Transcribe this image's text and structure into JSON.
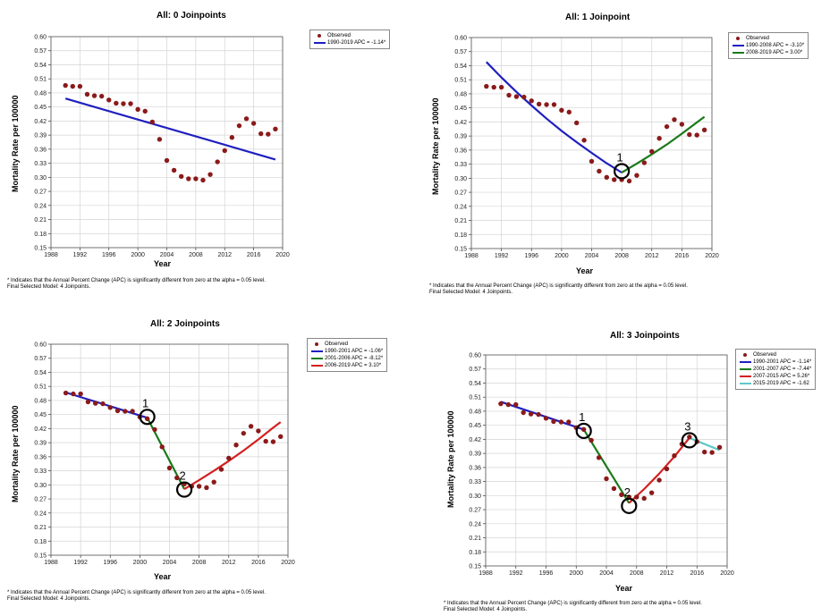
{
  "chart_data": [
    {
      "type": "line",
      "title": "All: 0 Joinpoints",
      "xlabel": "Year",
      "ylabel": "Mortality Rate per 100000",
      "xlim": [
        1988,
        2020
      ],
      "ylim": [
        0.15,
        0.6
      ],
      "x_ticks": [
        "1988",
        "1992",
        "1996",
        "2000",
        "2004",
        "2008",
        "2012",
        "2016",
        "2020"
      ],
      "y_ticks": [
        "0.15",
        "0.18",
        "0.21",
        "0.24",
        "0.27",
        "0.30",
        "0.33",
        "0.36",
        "0.39",
        "0.42",
        "0.45",
        "0.48",
        "0.51",
        "0.54",
        "0.57",
        "0.60"
      ],
      "grid": true,
      "legend_position": "top-right",
      "observed": {
        "name": "Observed",
        "x": [
          1990,
          1991,
          1992,
          1993,
          1994,
          1995,
          1996,
          1997,
          1998,
          1999,
          2000,
          2001,
          2002,
          2003,
          2004,
          2005,
          2006,
          2007,
          2008,
          2009,
          2010,
          2011,
          2012,
          2013,
          2014,
          2015,
          2016,
          2017,
          2018,
          2019
        ],
        "y": [
          0.496,
          0.494,
          0.494,
          0.477,
          0.474,
          0.473,
          0.465,
          0.458,
          0.457,
          0.457,
          0.445,
          0.441,
          0.418,
          0.381,
          0.336,
          0.315,
          0.302,
          0.297,
          0.297,
          0.294,
          0.306,
          0.333,
          0.357,
          0.385,
          0.41,
          0.425,
          0.415,
          0.393,
          0.392,
          0.403
        ]
      },
      "series": [
        {
          "name": "1990-2019 APC = -1.14*",
          "color": "#1f1fbf",
          "x": [
            1990,
            2019
          ],
          "y": [
            0.468,
            0.338
          ]
        }
      ],
      "joinpoints": [],
      "footnote": [
        "* Indicates that the Annual Percent Change (APC) is significantly different from zero at the alpha = 0.05 level.",
        "Final Selected Model: 4 Joinpoints."
      ]
    },
    {
      "type": "line",
      "title": "All: 1 Joinpoint",
      "xlabel": "Year",
      "ylabel": "Mortality Rate per 100000",
      "xlim": [
        1988,
        2020
      ],
      "ylim": [
        0.15,
        0.6
      ],
      "x_ticks": [
        "1988",
        "1992",
        "1996",
        "2000",
        "2004",
        "2008",
        "2012",
        "2016",
        "2020"
      ],
      "y_ticks": [
        "0.15",
        "0.18",
        "0.21",
        "0.24",
        "0.27",
        "0.30",
        "0.33",
        "0.36",
        "0.39",
        "0.42",
        "0.45",
        "0.48",
        "0.51",
        "0.54",
        "0.57",
        "0.60"
      ],
      "grid": true,
      "legend_position": "top-right",
      "observed": {
        "name": "Observed",
        "x": [
          1990,
          1991,
          1992,
          1993,
          1994,
          1995,
          1996,
          1997,
          1998,
          1999,
          2000,
          2001,
          2002,
          2003,
          2004,
          2005,
          2006,
          2007,
          2008,
          2009,
          2010,
          2011,
          2012,
          2013,
          2014,
          2015,
          2016,
          2017,
          2018,
          2019
        ],
        "y": [
          0.496,
          0.494,
          0.494,
          0.477,
          0.474,
          0.473,
          0.465,
          0.458,
          0.457,
          0.457,
          0.445,
          0.441,
          0.418,
          0.381,
          0.336,
          0.315,
          0.302,
          0.297,
          0.297,
          0.294,
          0.306,
          0.333,
          0.357,
          0.385,
          0.41,
          0.425,
          0.415,
          0.393,
          0.392,
          0.403
        ]
      },
      "series": [
        {
          "name": "1990-2008 APC = -3.10*",
          "color": "#1f1fbf",
          "x": [
            1990,
            1992,
            1994,
            1996,
            1998,
            2000,
            2002,
            2004,
            2006,
            2008
          ],
          "y": [
            0.548,
            0.515,
            0.484,
            0.455,
            0.427,
            0.401,
            0.377,
            0.354,
            0.332,
            0.312
          ]
        },
        {
          "name": "2008-2019 APC = 3.00*",
          "color": "#1a7a1a",
          "x": [
            2008,
            2010,
            2012,
            2014,
            2016,
            2018,
            2019
          ],
          "y": [
            0.312,
            0.331,
            0.351,
            0.372,
            0.395,
            0.419,
            0.431
          ]
        }
      ],
      "joinpoints": [
        {
          "label": "1",
          "x": 2008,
          "y": 0.315
        }
      ],
      "footnote": [
        "* Indicates that the Annual Percent Change (APC) is significantly different from zero at the alpha = 0.05 level.",
        "Final Selected Model: 4 Joinpoints."
      ]
    },
    {
      "type": "line",
      "title": "All: 2 Joinpoints",
      "xlabel": "Year",
      "ylabel": "Mortality Rate per 100000",
      "xlim": [
        1988,
        2020
      ],
      "ylim": [
        0.15,
        0.6
      ],
      "x_ticks": [
        "1988",
        "1992",
        "1996",
        "2000",
        "2004",
        "2008",
        "2012",
        "2016",
        "2020"
      ],
      "y_ticks": [
        "0.15",
        "0.18",
        "0.21",
        "0.24",
        "0.27",
        "0.30",
        "0.33",
        "0.36",
        "0.39",
        "0.42",
        "0.45",
        "0.48",
        "0.51",
        "0.54",
        "0.57",
        "0.60"
      ],
      "grid": true,
      "legend_position": "top-right",
      "observed": {
        "name": "Observed",
        "x": [
          1990,
          1991,
          1992,
          1993,
          1994,
          1995,
          1996,
          1997,
          1998,
          1999,
          2000,
          2001,
          2002,
          2003,
          2004,
          2005,
          2006,
          2007,
          2008,
          2009,
          2010,
          2011,
          2012,
          2013,
          2014,
          2015,
          2016,
          2017,
          2018,
          2019
        ],
        "y": [
          0.496,
          0.494,
          0.494,
          0.477,
          0.474,
          0.473,
          0.465,
          0.458,
          0.457,
          0.457,
          0.445,
          0.441,
          0.418,
          0.381,
          0.336,
          0.315,
          0.302,
          0.297,
          0.297,
          0.294,
          0.306,
          0.333,
          0.357,
          0.385,
          0.41,
          0.425,
          0.415,
          0.393,
          0.392,
          0.403
        ]
      },
      "series": [
        {
          "name": "1990-2001 APC = -1.06*",
          "color": "#1f1fbf",
          "x": [
            1990,
            2001
          ],
          "y": [
            0.497,
            0.443
          ]
        },
        {
          "name": "2001-2006 APC = -8.12*",
          "color": "#1a7a1a",
          "x": [
            2001,
            2006
          ],
          "y": [
            0.443,
            0.291
          ]
        },
        {
          "name": "2006-2019 APC = 3.10*",
          "color": "#d42020",
          "x": [
            2006,
            2008,
            2010,
            2012,
            2014,
            2016,
            2018,
            2019
          ],
          "y": [
            0.291,
            0.31,
            0.33,
            0.351,
            0.373,
            0.397,
            0.422,
            0.434
          ]
        }
      ],
      "joinpoints": [
        {
          "label": "1",
          "x": 2001,
          "y": 0.445
        },
        {
          "label": "2",
          "x": 2006,
          "y": 0.29
        }
      ],
      "footnote": [
        "* Indicates that the Annual Percent Change (APC) is significantly different from zero at the alpha = 0.05 level.",
        "Final Selected Model: 4 Joinpoints."
      ]
    },
    {
      "type": "line",
      "title": "All: 3 Joinpoints",
      "xlabel": "Year",
      "ylabel": "Mortality Rate per 100000",
      "xlim": [
        1988,
        2020
      ],
      "ylim": [
        0.15,
        0.6
      ],
      "x_ticks": [
        "1988",
        "1992",
        "1996",
        "2000",
        "2004",
        "2008",
        "2012",
        "2016",
        "2020"
      ],
      "y_ticks": [
        "0.15",
        "0.18",
        "0.21",
        "0.24",
        "0.27",
        "0.30",
        "0.33",
        "0.36",
        "0.39",
        "0.42",
        "0.45",
        "0.48",
        "0.51",
        "0.54",
        "0.57",
        "0.60"
      ],
      "grid": true,
      "legend_position": "top-right",
      "observed": {
        "name": "Observed",
        "x": [
          1990,
          1991,
          1992,
          1993,
          1994,
          1995,
          1996,
          1997,
          1998,
          1999,
          2000,
          2001,
          2002,
          2003,
          2004,
          2005,
          2006,
          2007,
          2008,
          2009,
          2010,
          2011,
          2012,
          2013,
          2014,
          2015,
          2016,
          2017,
          2018,
          2019
        ],
        "y": [
          0.496,
          0.494,
          0.494,
          0.477,
          0.474,
          0.473,
          0.465,
          0.458,
          0.457,
          0.457,
          0.445,
          0.441,
          0.418,
          0.381,
          0.336,
          0.315,
          0.302,
          0.297,
          0.297,
          0.294,
          0.306,
          0.333,
          0.357,
          0.385,
          0.41,
          0.425,
          0.415,
          0.393,
          0.392,
          0.403
        ]
      },
      "series": [
        {
          "name": "1990-2001 APC = -1.14*",
          "color": "#1f1fbf",
          "x": [
            1990,
            2001
          ],
          "y": [
            0.5,
            0.441
          ]
        },
        {
          "name": "2001-2007 APC = -7.44*",
          "color": "#1a7a1a",
          "x": [
            2001,
            2007
          ],
          "y": [
            0.441,
            0.284
          ]
        },
        {
          "name": "2007-2015 APC = 5.26*",
          "color": "#d42020",
          "x": [
            2007,
            2009,
            2011,
            2013,
            2015
          ],
          "y": [
            0.284,
            0.314,
            0.347,
            0.383,
            0.423
          ]
        },
        {
          "name": "2015-2019 APC = -1.62",
          "color": "#5cc8c8",
          "x": [
            2015,
            2019
          ],
          "y": [
            0.423,
            0.397
          ]
        }
      ],
      "joinpoints": [
        {
          "label": "1",
          "x": 2001,
          "y": 0.438
        },
        {
          "label": "2",
          "x": 2007,
          "y": 0.278
        },
        {
          "label": "3",
          "x": 2015,
          "y": 0.418
        }
      ],
      "footnote": [
        "* Indicates that the Annual Percent Change (APC) is significantly different from zero at the alpha = 0.05 level.",
        "Final Selected Model: 4 Joinpoints."
      ]
    }
  ],
  "colors": {
    "observed": "#8b1a1a",
    "grid": "#d4d4d4",
    "joinpoint_circle": "#000000"
  }
}
